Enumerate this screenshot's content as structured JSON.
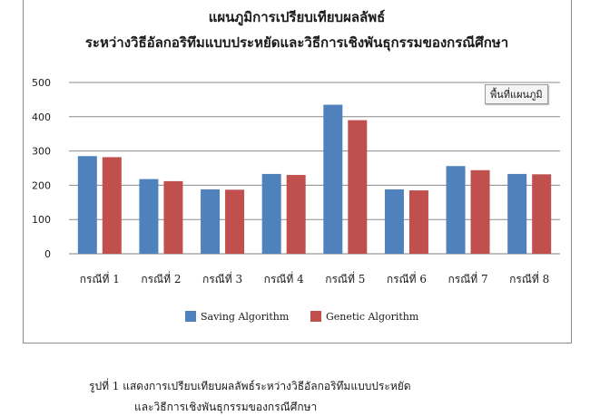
{
  "chart_data": {
    "type": "bar",
    "title": "แผนภูมิการเปรียบเทียบผลลัพธ์",
    "subtitle": "ระหว่างวิธีอัลกอริทึมแบบประหยัดและวิธีการเชิงพันธุกรรมของกรณีศึกษา",
    "categories": [
      "กรณีที่ 1",
      "กรณีที่ 2",
      "กรณีที่ 3",
      "กรณีที่ 4",
      "กรณีที่ 5",
      "กรณีที่ 6",
      "กรณีที่ 7",
      "กรณีที่ 8"
    ],
    "series": [
      {
        "name": "Saving Algorithm",
        "color": "#4f81bd",
        "values": [
          285,
          218,
          188,
          233,
          435,
          188,
          256,
          233
        ]
      },
      {
        "name": "Genetic Algorithm",
        "color": "#c0504d",
        "values": [
          282,
          212,
          187,
          230,
          390,
          185,
          244,
          232
        ]
      }
    ],
    "ylim": [
      0,
      500
    ],
    "yticks": [
      0,
      100,
      200,
      300,
      400,
      500
    ],
    "grid": true,
    "legend_position": "bottom",
    "xlabel": "",
    "ylabel": "",
    "plot_area_tag": "พื้นที่แผนภูมิ"
  },
  "caption": {
    "line1": "รูปที่ 1   แสดงการเปรียบเทียบผลลัพธ์ระหว่างวิธีอัลกอริทึมแบบประหยัด",
    "line2": "และวิธีการเชิงพันธุกรรมของกรณีศึกษา"
  }
}
